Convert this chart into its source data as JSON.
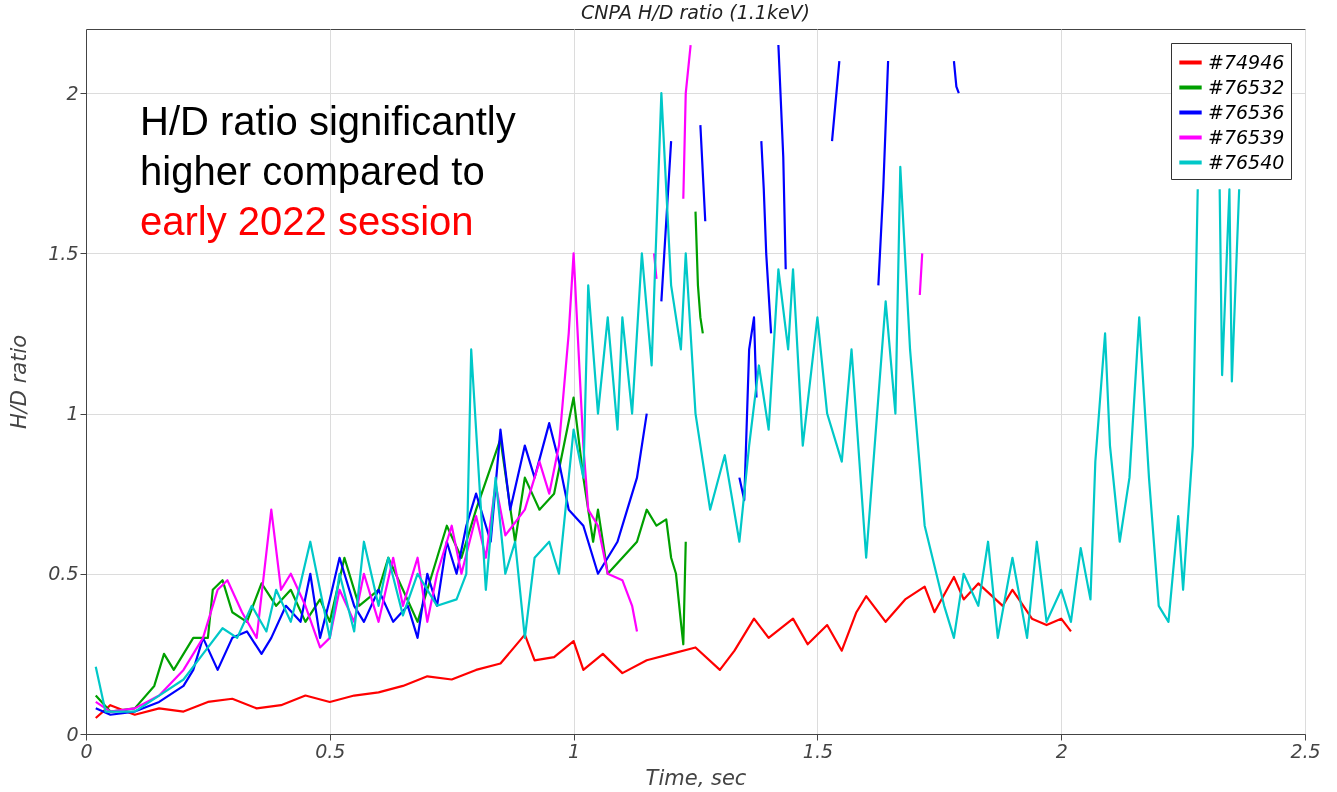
{
  "chart_data": {
    "type": "line",
    "title": "CNPA H/D ratio (1.1keV)",
    "xlabel": "Time, sec",
    "ylabel": "H/D ratio",
    "xlim": [
      0,
      2.5
    ],
    "xticks": [
      0,
      0.5,
      1,
      1.5,
      2,
      2.5
    ],
    "ylim": [
      0,
      2.2
    ],
    "yticks": [
      0,
      0.5,
      1,
      1.5,
      2
    ],
    "grid": true,
    "legend": "top right",
    "line_style": "solid",
    "annotations": [
      "H/D ratio significantly higher compared to",
      "early 2022 session"
    ],
    "series": [
      {
        "name": "#74946",
        "color": "#ff0000",
        "x": [
          0.02,
          0.05,
          0.1,
          0.15,
          0.2,
          0.25,
          0.3,
          0.35,
          0.4,
          0.45,
          0.5,
          0.55,
          0.6,
          0.65,
          0.7,
          0.75,
          0.8,
          0.85,
          0.9,
          0.92,
          0.96,
          1.0,
          1.02,
          1.06,
          1.1,
          1.15,
          1.2,
          1.25,
          1.3,
          1.33,
          1.37,
          1.4,
          1.45,
          1.48,
          1.52,
          1.55,
          1.58,
          1.6,
          1.64,
          1.68,
          1.72,
          1.74,
          1.78,
          1.8,
          1.83,
          1.88,
          1.9,
          1.94,
          1.97,
          2.0,
          2.02
        ],
        "values": [
          0.05,
          0.09,
          0.06,
          0.08,
          0.07,
          0.1,
          0.11,
          0.08,
          0.09,
          0.12,
          0.1,
          0.12,
          0.13,
          0.15,
          0.18,
          0.17,
          0.2,
          0.22,
          0.31,
          0.23,
          0.24,
          0.29,
          0.2,
          0.25,
          0.19,
          0.23,
          0.25,
          0.27,
          0.2,
          0.26,
          0.36,
          0.3,
          0.36,
          0.28,
          0.34,
          0.26,
          0.38,
          0.43,
          0.35,
          0.42,
          0.46,
          0.38,
          0.49,
          0.42,
          0.47,
          0.4,
          0.45,
          0.36,
          0.34,
          0.36,
          0.32
        ]
      },
      {
        "name": "#76532",
        "color": "#00a000",
        "x": [
          0.02,
          0.05,
          0.1,
          0.14,
          0.16,
          0.18,
          0.22,
          0.25,
          0.26,
          0.28,
          0.3,
          0.33,
          0.36,
          0.39,
          0.42,
          0.45,
          0.48,
          0.5,
          0.53,
          0.56,
          0.6,
          0.62,
          0.65,
          0.68,
          0.7,
          0.72,
          0.74,
          0.77,
          0.8,
          0.85,
          0.88,
          0.9,
          0.93,
          0.96,
          0.98,
          1.0,
          1.02,
          1.04,
          1.05,
          1.07,
          1.1,
          1.13,
          1.15,
          1.17,
          1.19,
          1.2,
          1.21,
          1.22,
          1.225,
          1.23,
          1.24,
          1.25,
          1.255,
          1.26,
          1.265
        ],
        "values": [
          0.12,
          0.07,
          0.08,
          0.15,
          0.25,
          0.2,
          0.3,
          0.3,
          0.45,
          0.48,
          0.38,
          0.35,
          0.47,
          0.4,
          0.45,
          0.35,
          0.42,
          0.35,
          0.55,
          0.4,
          0.45,
          0.55,
          0.45,
          0.35,
          0.45,
          0.55,
          0.65,
          0.55,
          0.7,
          0.92,
          0.6,
          0.8,
          0.7,
          0.75,
          0.9,
          1.05,
          0.8,
          0.6,
          0.7,
          0.5,
          0.55,
          0.6,
          0.7,
          0.65,
          0.67,
          0.55,
          0.5,
          0.35,
          0.28,
          0.6,
          null,
          1.63,
          1.4,
          1.3,
          1.25
        ]
      },
      {
        "name": "#76536",
        "color": "#0000ff",
        "x": [
          0.02,
          0.05,
          0.1,
          0.15,
          0.2,
          0.22,
          0.24,
          0.27,
          0.3,
          0.33,
          0.36,
          0.38,
          0.41,
          0.44,
          0.46,
          0.48,
          0.5,
          0.52,
          0.55,
          0.57,
          0.6,
          0.63,
          0.66,
          0.68,
          0.7,
          0.72,
          0.74,
          0.76,
          0.78,
          0.8,
          0.83,
          0.85,
          0.87,
          0.9,
          0.92,
          0.95,
          0.97,
          0.99,
          1.02,
          1.05,
          1.07,
          1.09,
          1.11,
          1.13,
          1.15,
          1.16,
          1.18,
          1.19,
          1.2,
          1.22,
          1.25,
          1.26,
          1.27,
          1.3,
          1.34,
          1.35,
          1.36,
          1.37,
          1.375,
          1.38,
          1.385,
          1.39,
          1.395,
          1.405,
          1.41,
          1.42,
          1.43,
          1.435,
          1.5,
          1.53,
          1.545,
          1.6,
          1.625,
          1.635,
          1.645,
          1.7,
          1.78,
          1.785,
          1.79
        ],
        "values": [
          0.08,
          0.06,
          0.07,
          0.1,
          0.15,
          0.2,
          0.3,
          0.2,
          0.3,
          0.32,
          0.25,
          0.3,
          0.4,
          0.35,
          0.5,
          0.3,
          0.42,
          0.55,
          0.4,
          0.35,
          0.45,
          0.35,
          0.4,
          0.3,
          0.5,
          0.4,
          0.6,
          0.5,
          0.65,
          0.75,
          0.6,
          0.95,
          0.7,
          0.9,
          0.8,
          0.97,
          0.85,
          0.7,
          0.65,
          0.5,
          0.55,
          0.6,
          0.7,
          0.8,
          1.0,
          null,
          1.35,
          1.6,
          1.85,
          null,
          null,
          1.9,
          1.6,
          null,
          0.8,
          0.73,
          1.2,
          1.3,
          1.05,
          null,
          1.85,
          1.7,
          1.5,
          1.25,
          null,
          2.15,
          1.8,
          1.45,
          null,
          1.85,
          2.1,
          null,
          1.4,
          1.7,
          2.1,
          null,
          2.1,
          2.02,
          2.0
        ]
      },
      {
        "name": "#76539",
        "color": "#ff00ff",
        "x": [
          0.02,
          0.05,
          0.1,
          0.15,
          0.2,
          0.24,
          0.27,
          0.29,
          0.32,
          0.35,
          0.38,
          0.4,
          0.42,
          0.45,
          0.48,
          0.5,
          0.52,
          0.55,
          0.57,
          0.6,
          0.63,
          0.65,
          0.68,
          0.7,
          0.72,
          0.75,
          0.77,
          0.8,
          0.82,
          0.84,
          0.86,
          0.9,
          0.93,
          0.95,
          0.97,
          0.99,
          1.0,
          1.02,
          1.03,
          1.05,
          1.07,
          1.1,
          1.12,
          1.13,
          1.15,
          1.165,
          1.17,
          1.2,
          1.225,
          1.23,
          1.24,
          1.5,
          1.71,
          1.715
        ],
        "values": [
          0.1,
          0.07,
          0.08,
          0.12,
          0.2,
          0.3,
          0.45,
          0.48,
          0.38,
          0.3,
          0.7,
          0.45,
          0.5,
          0.4,
          0.27,
          0.3,
          0.45,
          0.35,
          0.5,
          0.35,
          0.55,
          0.4,
          0.55,
          0.35,
          0.5,
          0.65,
          0.5,
          0.68,
          0.55,
          0.78,
          0.62,
          0.7,
          0.85,
          0.75,
          0.9,
          1.25,
          1.5,
          0.9,
          0.7,
          0.65,
          0.5,
          0.48,
          0.4,
          0.32,
          null,
          1.5,
          1.42,
          null,
          1.67,
          2.0,
          2.15,
          null,
          1.37,
          1.5
        ]
      },
      {
        "name": "#76540",
        "color": "#00c8c8",
        "x": [
          0.02,
          0.04,
          0.1,
          0.15,
          0.2,
          0.24,
          0.28,
          0.31,
          0.34,
          0.37,
          0.39,
          0.42,
          0.44,
          0.46,
          0.5,
          0.52,
          0.55,
          0.57,
          0.6,
          0.62,
          0.65,
          0.68,
          0.72,
          0.76,
          0.78,
          0.79,
          0.82,
          0.84,
          0.86,
          0.88,
          0.9,
          0.92,
          0.95,
          0.97,
          0.99,
          1.0,
          1.02,
          1.03,
          1.05,
          1.07,
          1.09,
          1.1,
          1.12,
          1.14,
          1.16,
          1.18,
          1.2,
          1.22,
          1.23,
          1.25,
          1.28,
          1.31,
          1.34,
          1.36,
          1.38,
          1.4,
          1.42,
          1.44,
          1.45,
          1.47,
          1.5,
          1.52,
          1.55,
          1.57,
          1.6,
          1.64,
          1.66,
          1.67,
          1.69,
          1.72,
          1.76,
          1.78,
          1.8,
          1.83,
          1.85,
          1.87,
          1.9,
          1.93,
          1.95,
          1.97,
          2.0,
          2.02,
          2.04,
          2.06,
          2.07,
          2.09,
          2.1,
          2.12,
          2.14,
          2.16,
          2.18,
          2.2,
          2.22,
          2.24,
          2.25,
          2.27,
          2.28,
          2.29,
          2.325,
          2.33,
          2.345,
          2.35,
          2.365
        ],
        "values": [
          0.21,
          0.07,
          0.07,
          0.12,
          0.17,
          0.25,
          0.33,
          0.3,
          0.4,
          0.32,
          0.45,
          0.35,
          0.47,
          0.6,
          0.3,
          0.5,
          0.32,
          0.6,
          0.4,
          0.55,
          0.37,
          0.5,
          0.4,
          0.42,
          0.5,
          1.2,
          0.45,
          0.8,
          0.5,
          0.6,
          0.3,
          0.55,
          0.6,
          0.5,
          0.8,
          0.95,
          0.8,
          1.4,
          1.0,
          1.3,
          0.95,
          1.3,
          1.0,
          1.5,
          1.15,
          2.0,
          1.4,
          1.2,
          1.5,
          1.0,
          0.7,
          0.87,
          0.6,
          0.9,
          1.15,
          0.95,
          1.45,
          1.2,
          1.45,
          0.9,
          1.3,
          1.0,
          0.85,
          1.2,
          0.55,
          1.35,
          1.0,
          1.77,
          1.2,
          0.65,
          0.4,
          0.3,
          0.5,
          0.4,
          0.6,
          0.3,
          0.55,
          0.3,
          0.6,
          0.35,
          0.45,
          0.35,
          0.58,
          0.42,
          0.85,
          1.25,
          0.9,
          0.6,
          0.8,
          1.3,
          0.8,
          0.4,
          0.35,
          0.68,
          0.45,
          0.9,
          1.7,
          null,
          1.7,
          1.12,
          1.7,
          1.1,
          1.7
        ]
      }
    ]
  }
}
